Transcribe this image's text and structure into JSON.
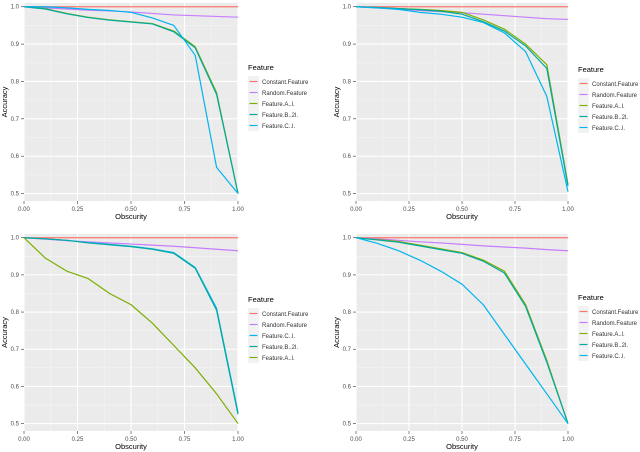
{
  "chart_data": [
    {
      "type": "line",
      "xlabel": "Obscurity",
      "ylabel": "Accuracy",
      "xlim": [
        0,
        1
      ],
      "ylim": [
        0.48,
        1.01
      ],
      "xticks": [
        0,
        0.25,
        0.5,
        0.75,
        1
      ],
      "xtick_labels": [
        "0.00",
        "0.25",
        "0.50",
        "0.75",
        "1.00"
      ],
      "yticks": [
        0.5,
        0.6,
        0.7,
        0.8,
        0.9,
        1.0
      ],
      "ytick_labels": [
        "0.5",
        "0.6",
        "0.7",
        "0.8",
        "0.9",
        "1.0"
      ],
      "grid": true,
      "legend": {
        "title": "Feature",
        "placement": "right"
      },
      "series": [
        {
          "name": "Constant.Feature",
          "color": "#F8766D",
          "x": [
            0,
            1
          ],
          "y": [
            1.0,
            1.0
          ]
        },
        {
          "name": "Random.Feature",
          "color": "#C77CFF",
          "x": [
            0,
            0.1,
            0.2,
            0.3,
            0.4,
            0.5,
            0.6,
            0.7,
            0.8,
            0.9,
            1.0
          ],
          "y": [
            1.0,
            0.997,
            0.994,
            0.991,
            0.989,
            0.986,
            0.982,
            0.978,
            0.976,
            0.974,
            0.972
          ]
        },
        {
          "name": "Feature.A..l.",
          "color": "#7CAE00",
          "x": [
            0,
            0.1,
            0.2,
            0.3,
            0.4,
            0.5,
            0.6,
            0.7,
            0.8,
            0.9,
            1.0
          ],
          "y": [
            1.0,
            0.995,
            0.982,
            0.972,
            0.965,
            0.96,
            0.955,
            0.935,
            0.893,
            0.77,
            0.5
          ]
        },
        {
          "name": "Feature.B..2l.",
          "color": "#00A9A0",
          "x": [
            0,
            0.1,
            0.2,
            0.3,
            0.4,
            0.5,
            0.6,
            0.7,
            0.8,
            0.9,
            1.0
          ],
          "y": [
            1.0,
            0.994,
            0.981,
            0.971,
            0.964,
            0.959,
            0.954,
            0.933,
            0.89,
            0.765,
            0.5
          ]
        },
        {
          "name": "Feature.C..l.",
          "color": "#00B4EF",
          "x": [
            0,
            0.1,
            0.2,
            0.3,
            0.4,
            0.5,
            0.6,
            0.7,
            0.8,
            0.9,
            1.0
          ],
          "y": [
            1.0,
            1.0,
            0.997,
            0.993,
            0.99,
            0.985,
            0.97,
            0.95,
            0.87,
            0.57,
            0.5
          ]
        }
      ]
    },
    {
      "type": "line",
      "xlabel": "Obscurity",
      "ylabel": "Accuracy",
      "xlim": [
        0,
        1
      ],
      "ylim": [
        0.48,
        1.01
      ],
      "xticks": [
        0,
        0.25,
        0.5,
        0.75,
        1
      ],
      "xtick_labels": [
        "0.00",
        "0.25",
        "0.50",
        "0.75",
        "1.00"
      ],
      "yticks": [
        0.5,
        0.6,
        0.7,
        0.8,
        0.9,
        1.0
      ],
      "ytick_labels": [
        "0.5",
        "0.6",
        "0.7",
        "0.8",
        "0.9",
        "1.0"
      ],
      "grid": true,
      "legend": {
        "title": "Feature",
        "placement": "right"
      },
      "series": [
        {
          "name": "Constant.Feature",
          "color": "#F8766D",
          "x": [
            0,
            1
          ],
          "y": [
            1.0,
            1.0
          ]
        },
        {
          "name": "Random.Feature",
          "color": "#C77CFF",
          "x": [
            0,
            0.1,
            0.2,
            0.3,
            0.4,
            0.5,
            0.6,
            0.7,
            0.8,
            0.9,
            1.0
          ],
          "y": [
            1.0,
            0.997,
            0.994,
            0.99,
            0.987,
            0.984,
            0.98,
            0.976,
            0.972,
            0.968,
            0.966
          ]
        },
        {
          "name": "Feature.A..l.",
          "color": "#7CAE00",
          "x": [
            0,
            0.1,
            0.2,
            0.3,
            0.4,
            0.5,
            0.6,
            0.7,
            0.8,
            0.9,
            1.0
          ],
          "y": [
            1.0,
            0.998,
            0.995,
            0.993,
            0.99,
            0.985,
            0.965,
            0.94,
            0.9,
            0.845,
            0.525
          ]
        },
        {
          "name": "Feature.B..2l.",
          "color": "#00A9A0",
          "x": [
            0,
            0.1,
            0.2,
            0.3,
            0.4,
            0.5,
            0.6,
            0.7,
            0.8,
            0.9,
            1.0
          ],
          "y": [
            1.0,
            0.998,
            0.995,
            0.992,
            0.988,
            0.98,
            0.96,
            0.935,
            0.895,
            0.835,
            0.52
          ]
        },
        {
          "name": "Feature.C..l.",
          "color": "#00B4EF",
          "x": [
            0,
            0.1,
            0.2,
            0.3,
            0.4,
            0.5,
            0.6,
            0.7,
            0.8,
            0.9,
            1.0
          ],
          "y": [
            1.0,
            0.997,
            0.993,
            0.985,
            0.98,
            0.972,
            0.958,
            0.93,
            0.88,
            0.76,
            0.505
          ]
        }
      ]
    },
    {
      "type": "line",
      "xlabel": "Obscurity",
      "ylabel": "Accuracy",
      "xlim": [
        0,
        1
      ],
      "ylim": [
        0.48,
        1.01
      ],
      "xticks": [
        0,
        0.25,
        0.5,
        0.75,
        1
      ],
      "xtick_labels": [
        "0.00",
        "0.25",
        "0.50",
        "0.75",
        "1.00"
      ],
      "yticks": [
        0.5,
        0.6,
        0.7,
        0.8,
        0.9,
        1.0
      ],
      "ytick_labels": [
        "0.5",
        "0.6",
        "0.7",
        "0.8",
        "0.9",
        "1.0"
      ],
      "grid": true,
      "legend": {
        "title": "Feature",
        "placement": "right"
      },
      "series": [
        {
          "name": "Constant.Feature",
          "color": "#F8766D",
          "x": [
            0,
            1
          ],
          "y": [
            1.0,
            1.0
          ]
        },
        {
          "name": "Random.Feature",
          "color": "#C77CFF",
          "x": [
            0,
            0.1,
            0.2,
            0.3,
            0.4,
            0.5,
            0.6,
            0.7,
            0.8,
            0.9,
            1.0
          ],
          "y": [
            1.0,
            0.996,
            0.992,
            0.989,
            0.986,
            0.983,
            0.98,
            0.977,
            0.973,
            0.969,
            0.965
          ]
        },
        {
          "name": "Feature.C..l.",
          "color": "#00B4EF",
          "x": [
            0,
            0.1,
            0.2,
            0.3,
            0.4,
            0.5,
            0.6,
            0.7,
            0.8,
            0.9,
            1.0
          ],
          "y": [
            1.0,
            0.997,
            0.993,
            0.987,
            0.982,
            0.977,
            0.97,
            0.96,
            0.92,
            0.81,
            0.53
          ]
        },
        {
          "name": "Feature.B..2l.",
          "color": "#00A9A0",
          "x": [
            0,
            0.1,
            0.2,
            0.3,
            0.4,
            0.5,
            0.6,
            0.7,
            0.8,
            0.9,
            1.0
          ],
          "y": [
            1.0,
            0.997,
            0.993,
            0.986,
            0.981,
            0.976,
            0.969,
            0.958,
            0.918,
            0.805,
            0.525
          ]
        },
        {
          "name": "Feature.A..l.",
          "color": "#7CAE00",
          "x": [
            0,
            0.1,
            0.2,
            0.3,
            0.4,
            0.5,
            0.6,
            0.7,
            0.8,
            0.9,
            1.0
          ],
          "y": [
            1.0,
            0.945,
            0.91,
            0.89,
            0.85,
            0.82,
            0.77,
            0.71,
            0.65,
            0.58,
            0.5
          ]
        }
      ]
    },
    {
      "type": "line",
      "xlabel": "Obscurity",
      "ylabel": "Accuracy",
      "xlim": [
        0,
        1
      ],
      "ylim": [
        0.48,
        1.01
      ],
      "xticks": [
        0,
        0.25,
        0.5,
        0.75,
        1
      ],
      "xtick_labels": [
        "0.00",
        "0.25",
        "0.50",
        "0.75",
        "1.00"
      ],
      "yticks": [
        0.5,
        0.6,
        0.7,
        0.8,
        0.9,
        1.0
      ],
      "ytick_labels": [
        "0.5",
        "0.6",
        "0.7",
        "0.8",
        "0.9",
        "1.0"
      ],
      "grid": true,
      "legend": {
        "title": "Feature",
        "placement": "right"
      },
      "series": [
        {
          "name": "Constant.Feature",
          "color": "#F8766D",
          "x": [
            0,
            1
          ],
          "y": [
            1.0,
            1.0
          ]
        },
        {
          "name": "Random.Feature",
          "color": "#C77CFF",
          "x": [
            0,
            0.1,
            0.2,
            0.3,
            0.4,
            0.5,
            0.6,
            0.7,
            0.8,
            0.9,
            1.0
          ],
          "y": [
            1.0,
            0.997,
            0.993,
            0.989,
            0.986,
            0.982,
            0.978,
            0.975,
            0.972,
            0.968,
            0.965
          ]
        },
        {
          "name": "Feature.A..l.",
          "color": "#7CAE00",
          "x": [
            0,
            0.1,
            0.2,
            0.3,
            0.4,
            0.5,
            0.6,
            0.7,
            0.8,
            0.9,
            1.0
          ],
          "y": [
            1.0,
            0.995,
            0.99,
            0.98,
            0.97,
            0.96,
            0.94,
            0.91,
            0.82,
            0.67,
            0.5
          ]
        },
        {
          "name": "Feature.B..2l.",
          "color": "#00A9A0",
          "x": [
            0,
            0.1,
            0.2,
            0.3,
            0.4,
            0.5,
            0.6,
            0.7,
            0.8,
            0.9,
            1.0
          ],
          "y": [
            1.0,
            0.994,
            0.988,
            0.978,
            0.968,
            0.958,
            0.937,
            0.905,
            0.815,
            0.665,
            0.5
          ]
        },
        {
          "name": "Feature.C..l.",
          "color": "#00B4EF",
          "x": [
            0,
            0.1,
            0.2,
            0.3,
            0.4,
            0.5,
            0.6,
            0.7,
            0.8,
            0.9,
            1.0
          ],
          "y": [
            1.0,
            0.985,
            0.965,
            0.94,
            0.91,
            0.875,
            0.82,
            0.74,
            0.66,
            0.58,
            0.5
          ]
        }
      ]
    }
  ]
}
